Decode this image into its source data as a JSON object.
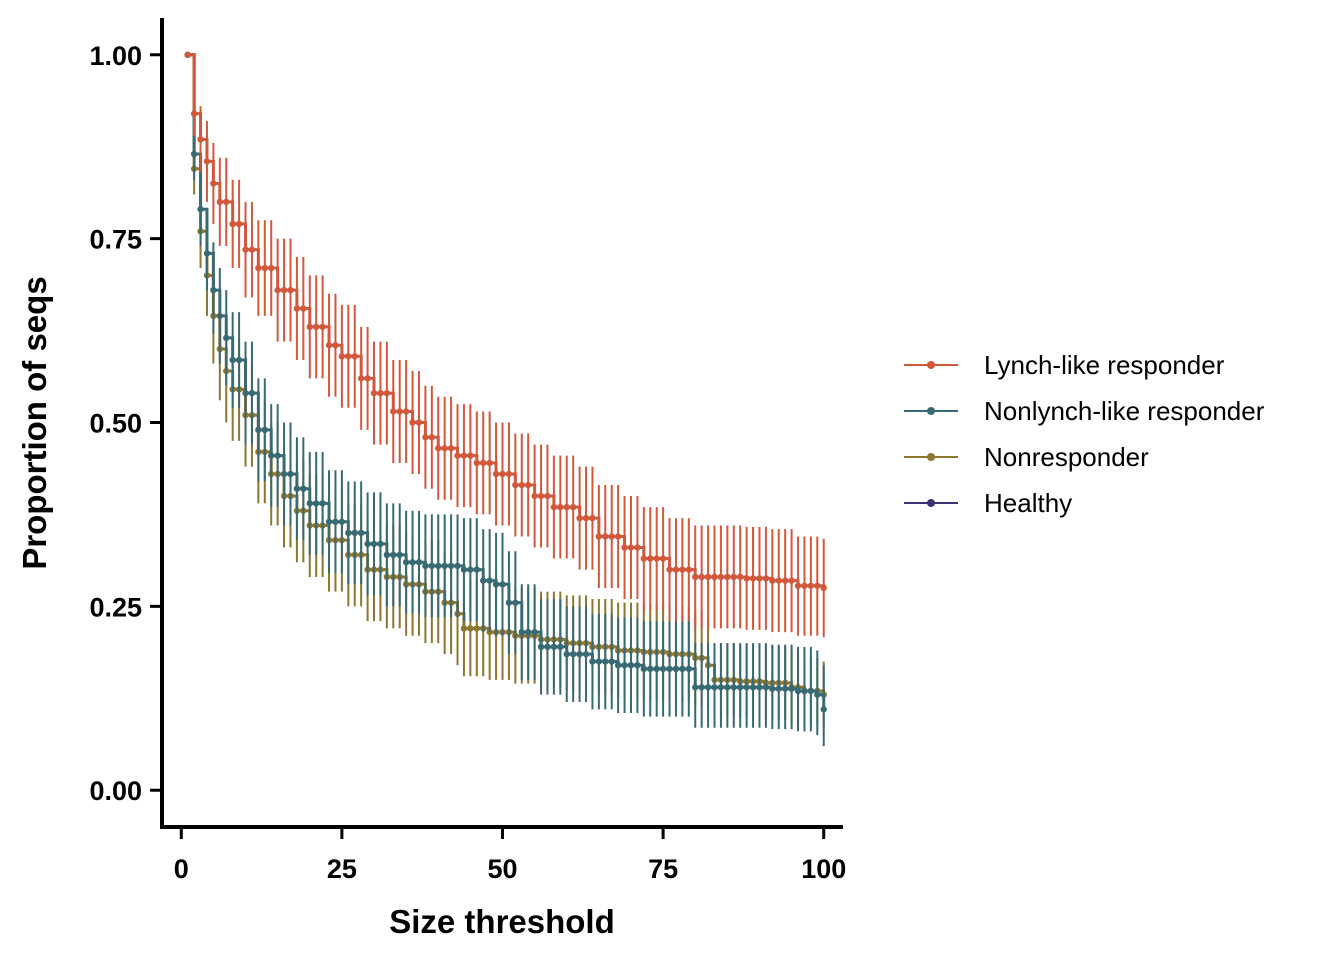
{
  "chart_data": {
    "type": "line",
    "xlabel": "Size threshold",
    "ylabel": "Proportion of seqs",
    "xlim": [
      -3,
      103
    ],
    "ylim": [
      -0.05,
      1.05
    ],
    "xticks": [
      0,
      25,
      50,
      75,
      100
    ],
    "xtick_labels": [
      "0",
      "25",
      "50",
      "75",
      "100"
    ],
    "yticks": [
      0,
      0.25,
      0.5,
      0.75,
      1.0
    ],
    "ytick_labels": [
      "0.00",
      "0.25",
      "0.50",
      "0.75",
      "1.00"
    ],
    "grid": false,
    "legend_position": "right",
    "series": [
      {
        "name": "Lynch-like responder",
        "color": "#d2583c",
        "points": [
          [
            1,
            1.0,
            1.0,
            1.0
          ],
          [
            2,
            0.92,
            0.89,
            0.95
          ],
          [
            3,
            0.885,
            0.84,
            0.93
          ],
          [
            4,
            0.855,
            0.8,
            0.91
          ],
          [
            5,
            0.825,
            0.77,
            0.88
          ],
          [
            6,
            0.8,
            0.74,
            0.86
          ],
          [
            8,
            0.77,
            0.71,
            0.83
          ],
          [
            10,
            0.735,
            0.67,
            0.8
          ],
          [
            12,
            0.71,
            0.645,
            0.775
          ],
          [
            15,
            0.68,
            0.61,
            0.75
          ],
          [
            18,
            0.655,
            0.585,
            0.725
          ],
          [
            20,
            0.63,
            0.56,
            0.7
          ],
          [
            23,
            0.605,
            0.535,
            0.675
          ],
          [
            25,
            0.59,
            0.52,
            0.66
          ],
          [
            28,
            0.56,
            0.49,
            0.63
          ],
          [
            30,
            0.54,
            0.47,
            0.61
          ],
          [
            33,
            0.515,
            0.445,
            0.585
          ],
          [
            36,
            0.5,
            0.43,
            0.57
          ],
          [
            38,
            0.48,
            0.41,
            0.55
          ],
          [
            40,
            0.465,
            0.395,
            0.535
          ],
          [
            43,
            0.455,
            0.385,
            0.525
          ],
          [
            46,
            0.445,
            0.375,
            0.515
          ],
          [
            49,
            0.43,
            0.36,
            0.5
          ],
          [
            52,
            0.415,
            0.345,
            0.485
          ],
          [
            55,
            0.4,
            0.33,
            0.47
          ],
          [
            58,
            0.385,
            0.315,
            0.455
          ],
          [
            62,
            0.37,
            0.3,
            0.44
          ],
          [
            65,
            0.345,
            0.275,
            0.415
          ],
          [
            69,
            0.33,
            0.26,
            0.4
          ],
          [
            72,
            0.315,
            0.245,
            0.385
          ],
          [
            76,
            0.3,
            0.23,
            0.37
          ],
          [
            80,
            0.29,
            0.22,
            0.36
          ],
          [
            84,
            0.29,
            0.22,
            0.36
          ],
          [
            88,
            0.288,
            0.218,
            0.358
          ],
          [
            92,
            0.285,
            0.215,
            0.355
          ],
          [
            96,
            0.278,
            0.21,
            0.345
          ],
          [
            100,
            0.275,
            0.208,
            0.342
          ]
        ]
      },
      {
        "name": "Nonlynch-like responder",
        "color": "#386a74",
        "points": [
          [
            1,
            1.0,
            1.0,
            1.0
          ],
          [
            2,
            0.865,
            0.83,
            0.9
          ],
          [
            3,
            0.79,
            0.74,
            0.84
          ],
          [
            4,
            0.73,
            0.68,
            0.79
          ],
          [
            5,
            0.68,
            0.62,
            0.745
          ],
          [
            6,
            0.645,
            0.58,
            0.71
          ],
          [
            7,
            0.615,
            0.55,
            0.68
          ],
          [
            8,
            0.585,
            0.52,
            0.65
          ],
          [
            10,
            0.54,
            0.47,
            0.61
          ],
          [
            12,
            0.49,
            0.42,
            0.56
          ],
          [
            14,
            0.455,
            0.385,
            0.525
          ],
          [
            16,
            0.43,
            0.36,
            0.5
          ],
          [
            18,
            0.41,
            0.34,
            0.48
          ],
          [
            20,
            0.39,
            0.32,
            0.46
          ],
          [
            23,
            0.365,
            0.295,
            0.435
          ],
          [
            26,
            0.35,
            0.28,
            0.42
          ],
          [
            29,
            0.335,
            0.265,
            0.405
          ],
          [
            32,
            0.32,
            0.25,
            0.39
          ],
          [
            35,
            0.31,
            0.24,
            0.38
          ],
          [
            38,
            0.305,
            0.235,
            0.375
          ],
          [
            41,
            0.305,
            0.235,
            0.375
          ],
          [
            44,
            0.3,
            0.23,
            0.37
          ],
          [
            47,
            0.285,
            0.215,
            0.355
          ],
          [
            49,
            0.28,
            0.21,
            0.35
          ],
          [
            51,
            0.255,
            0.185,
            0.325
          ],
          [
            53,
            0.215,
            0.15,
            0.28
          ],
          [
            56,
            0.195,
            0.13,
            0.26
          ],
          [
            60,
            0.185,
            0.12,
            0.25
          ],
          [
            64,
            0.175,
            0.11,
            0.24
          ],
          [
            68,
            0.17,
            0.105,
            0.235
          ],
          [
            72,
            0.165,
            0.1,
            0.23
          ],
          [
            76,
            0.165,
            0.1,
            0.23
          ],
          [
            80,
            0.14,
            0.085,
            0.2
          ],
          [
            84,
            0.14,
            0.085,
            0.2
          ],
          [
            88,
            0.14,
            0.085,
            0.2
          ],
          [
            92,
            0.138,
            0.083,
            0.198
          ],
          [
            96,
            0.135,
            0.08,
            0.195
          ],
          [
            99,
            0.13,
            0.075,
            0.19
          ],
          [
            100,
            0.11,
            0.06,
            0.17
          ]
        ]
      },
      {
        "name": "Nonresponder",
        "color": "#8e7630",
        "points": [
          [
            1,
            1.0,
            1.0,
            1.0
          ],
          [
            2,
            0.845,
            0.81,
            0.88
          ],
          [
            3,
            0.76,
            0.71,
            0.81
          ],
          [
            4,
            0.7,
            0.645,
            0.76
          ],
          [
            5,
            0.645,
            0.58,
            0.71
          ],
          [
            6,
            0.6,
            0.53,
            0.67
          ],
          [
            7,
            0.57,
            0.5,
            0.64
          ],
          [
            8,
            0.545,
            0.475,
            0.615
          ],
          [
            10,
            0.51,
            0.44,
            0.58
          ],
          [
            12,
            0.46,
            0.39,
            0.53
          ],
          [
            14,
            0.43,
            0.36,
            0.5
          ],
          [
            16,
            0.4,
            0.33,
            0.47
          ],
          [
            18,
            0.38,
            0.31,
            0.45
          ],
          [
            20,
            0.36,
            0.29,
            0.43
          ],
          [
            23,
            0.34,
            0.27,
            0.41
          ],
          [
            26,
            0.32,
            0.25,
            0.39
          ],
          [
            29,
            0.3,
            0.23,
            0.37
          ],
          [
            32,
            0.29,
            0.22,
            0.36
          ],
          [
            35,
            0.28,
            0.21,
            0.35
          ],
          [
            38,
            0.27,
            0.2,
            0.34
          ],
          [
            41,
            0.255,
            0.185,
            0.325
          ],
          [
            43,
            0.24,
            0.17,
            0.31
          ],
          [
            44,
            0.22,
            0.155,
            0.285
          ],
          [
            48,
            0.215,
            0.15,
            0.28
          ],
          [
            52,
            0.21,
            0.145,
            0.275
          ],
          [
            56,
            0.205,
            0.14,
            0.27
          ],
          [
            60,
            0.2,
            0.135,
            0.265
          ],
          [
            64,
            0.195,
            0.13,
            0.26
          ],
          [
            68,
            0.19,
            0.125,
            0.255
          ],
          [
            72,
            0.188,
            0.123,
            0.253
          ],
          [
            76,
            0.185,
            0.12,
            0.25
          ],
          [
            80,
            0.18,
            0.115,
            0.245
          ],
          [
            82,
            0.17,
            0.11,
            0.23
          ],
          [
            83,
            0.15,
            0.1,
            0.2
          ],
          [
            87,
            0.148,
            0.098,
            0.198
          ],
          [
            91,
            0.146,
            0.096,
            0.196
          ],
          [
            95,
            0.14,
            0.09,
            0.19
          ],
          [
            97,
            0.135,
            0.09,
            0.18
          ],
          [
            100,
            0.13,
            0.085,
            0.175
          ]
        ]
      },
      {
        "name": "Healthy",
        "color": "#3b3372",
        "points": []
      }
    ]
  }
}
